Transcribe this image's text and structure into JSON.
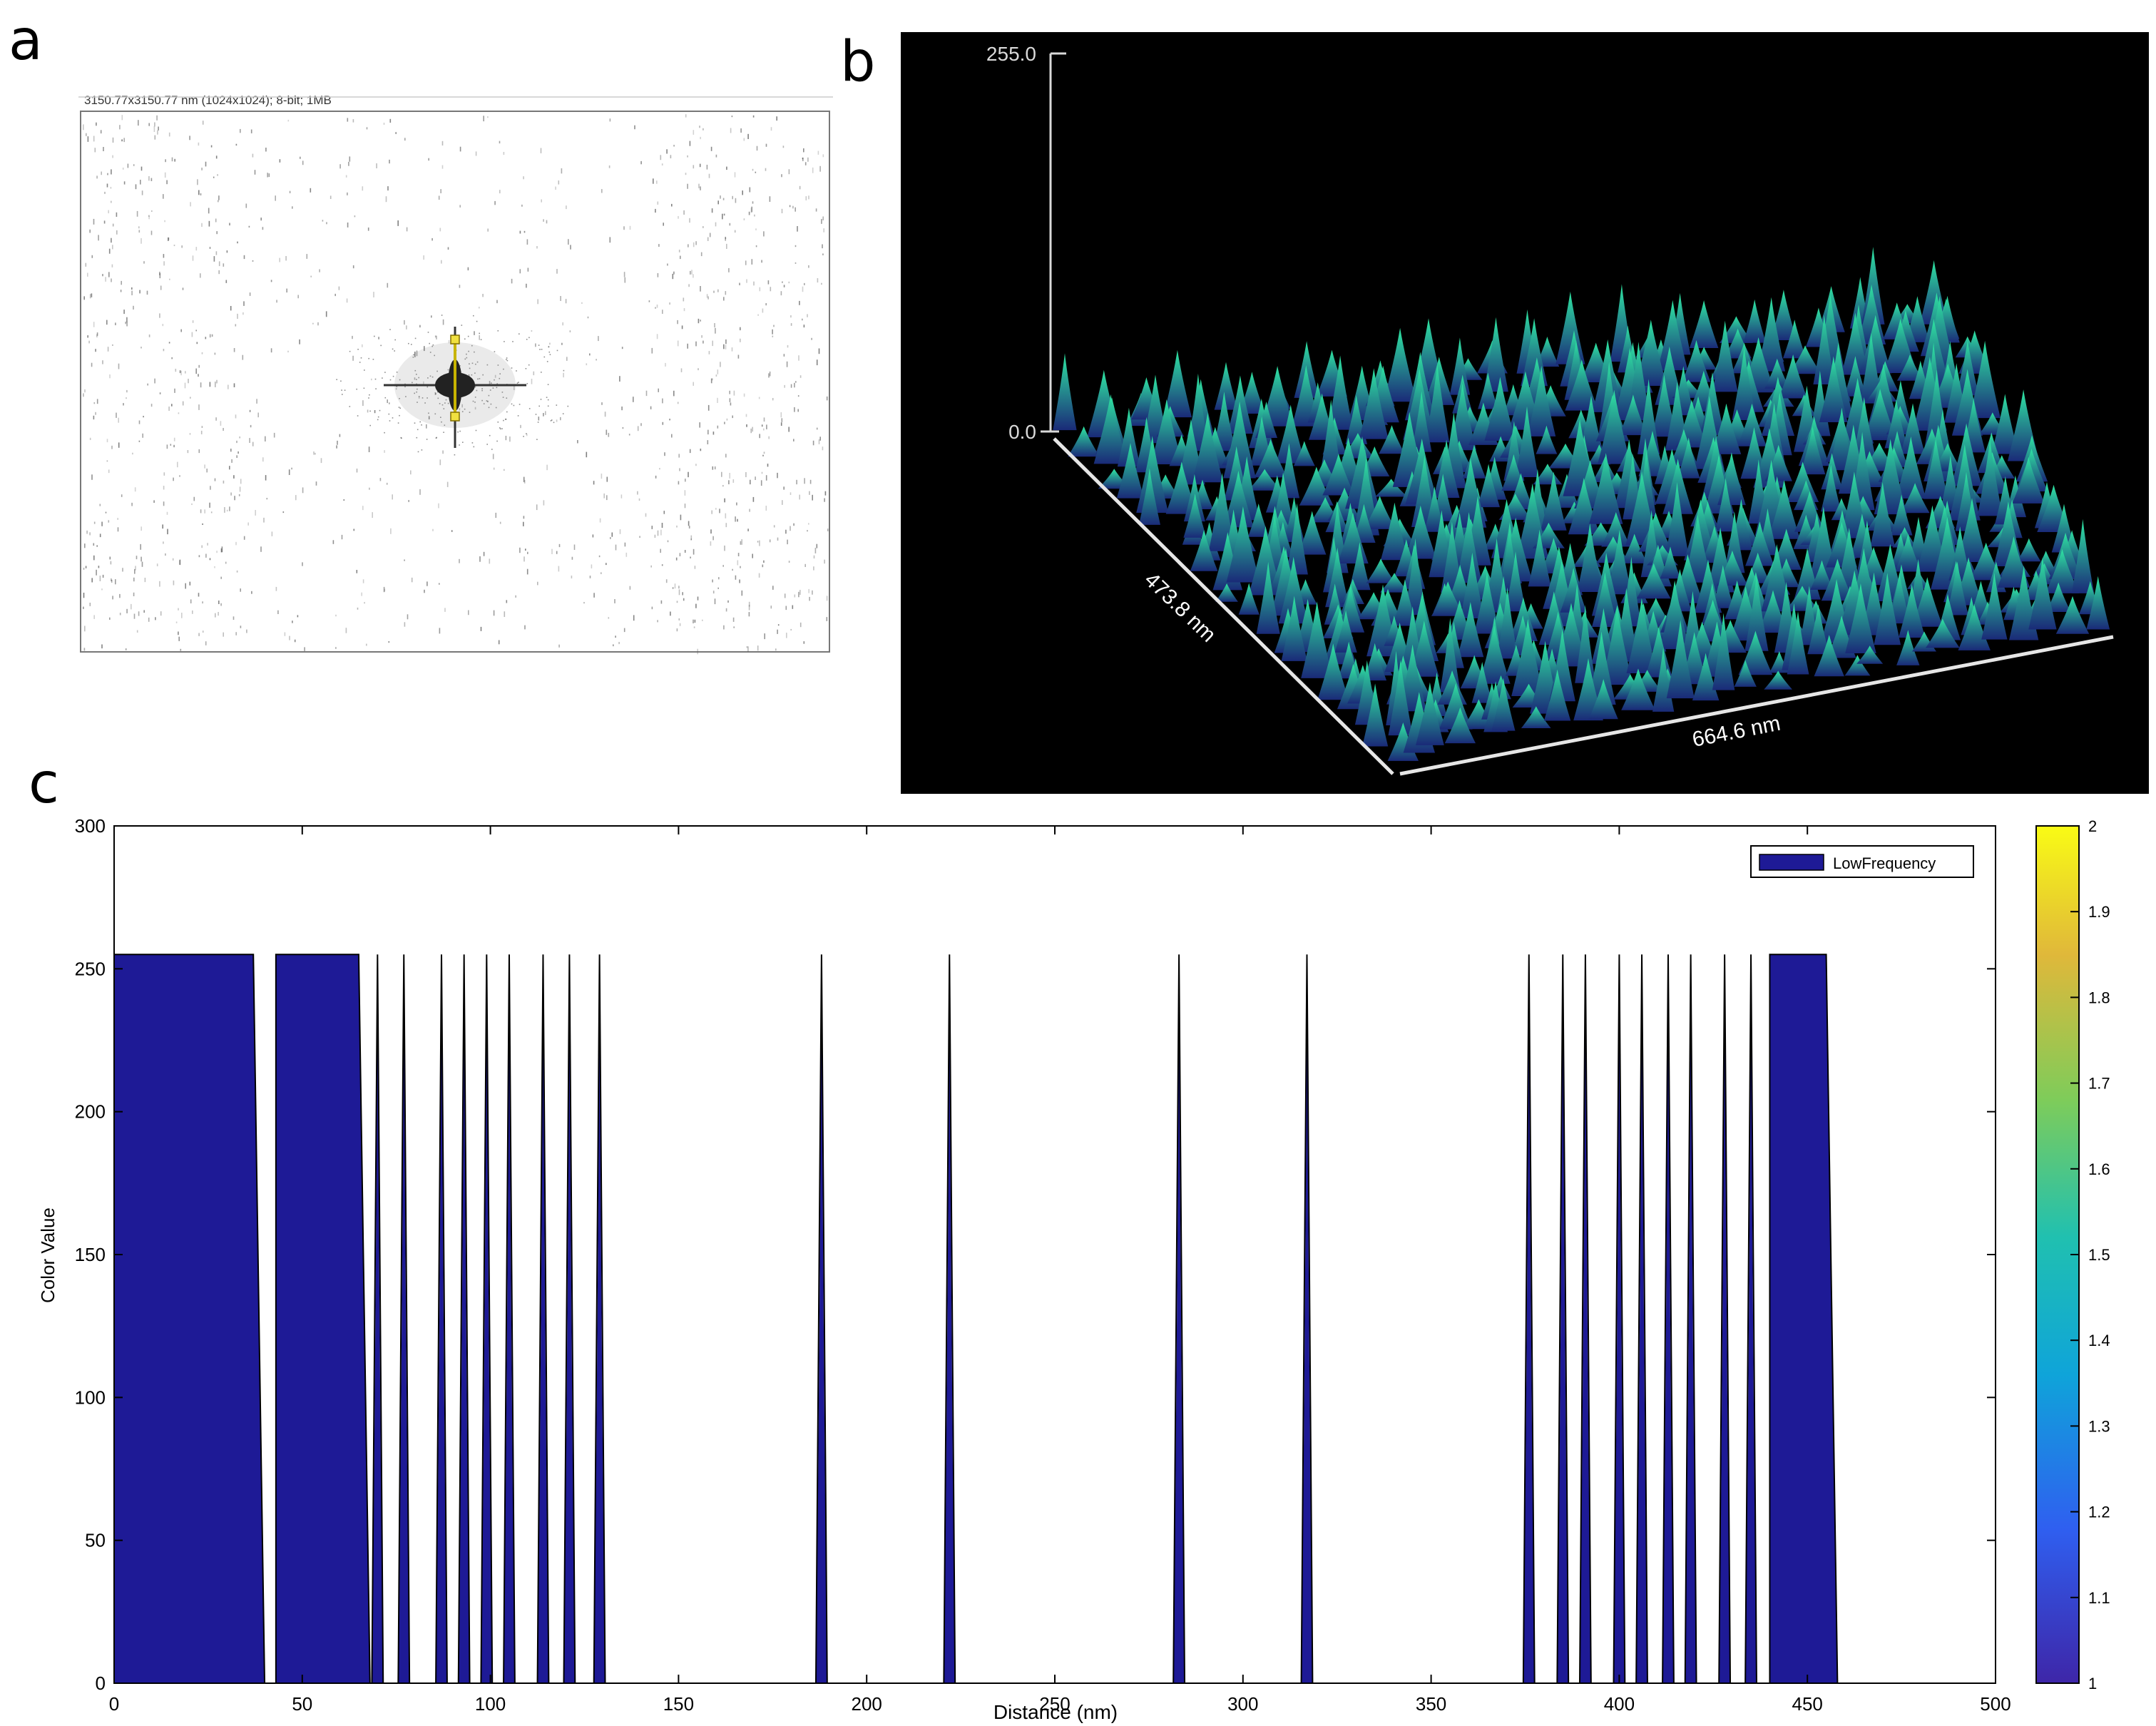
{
  "panel_labels": {
    "a": "a",
    "b": "b",
    "c": "c"
  },
  "panel_a": {
    "header": "3150.77x3150.77 nm (1024x1024); 8-bit; 1MB",
    "image_kind": "FFT power spectrum"
  },
  "panel_b": {
    "z_max_label": "255.0",
    "z_min_label": "0.0",
    "depth_label": "473.8 nm",
    "width_label": "664.6 nm",
    "colors": {
      "background": "#000000",
      "axis": "#d9d9d9",
      "peak_low": "#1a2a78",
      "peak_high": "#2fe6a2"
    }
  },
  "chart_data": [
    {
      "type": "area",
      "xlabel": "Distance (nm)",
      "ylabel": "Color Value",
      "xlim": [
        0,
        500
      ],
      "ylim": [
        0,
        300
      ],
      "x_ticks": [
        0,
        50,
        100,
        150,
        200,
        250,
        300,
        350,
        400,
        450,
        500
      ],
      "y_ticks": [
        0,
        50,
        100,
        150,
        200,
        250,
        300
      ],
      "legend": {
        "label": "LowFrequency",
        "placement": "top-right"
      },
      "series": [
        {
          "name": "LowFrequency",
          "color": "#1e1a96",
          "plateau_value": 255,
          "blocks": [
            [
              0,
              37
            ],
            [
              43,
              65
            ],
            [
              440,
              455
            ]
          ],
          "spikes": [
            [
              70,
              3
            ],
            [
              77,
              3
            ],
            [
              87,
              3
            ],
            [
              93,
              3
            ],
            [
              99,
              3
            ],
            [
              105,
              3
            ],
            [
              114,
              3
            ],
            [
              121,
              3
            ],
            [
              129,
              3
            ],
            [
              188,
              3
            ],
            [
              222,
              3
            ],
            [
              283,
              3
            ],
            [
              317,
              3
            ],
            [
              376,
              3
            ],
            [
              385,
              3
            ],
            [
              391,
              3
            ],
            [
              400,
              3
            ],
            [
              406,
              3
            ],
            [
              413,
              3
            ],
            [
              419,
              3
            ],
            [
              428,
              3
            ],
            [
              435,
              3
            ]
          ]
        }
      ],
      "colorbar": {
        "min": 1,
        "max": 2,
        "ticks": [
          "1",
          "1.1",
          "1.2",
          "1.3",
          "1.4",
          "1.5",
          "1.6",
          "1.7",
          "1.8",
          "1.9",
          "2"
        ],
        "colors": [
          "#3e26a8",
          "#2f5ff0",
          "#0fa4d9",
          "#20c0b0",
          "#7ecc5a",
          "#e0b83a",
          "#f9fb15"
        ]
      }
    }
  ]
}
